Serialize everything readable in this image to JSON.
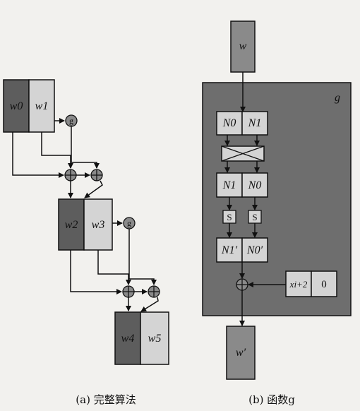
{
  "left": {
    "w0": "w0",
    "w1": "w1",
    "w2": "w2",
    "w3": "w3",
    "w4": "w4",
    "w5": "w5",
    "g": "g",
    "caption": "(a) 完整算法"
  },
  "right": {
    "w_in": "w",
    "w_out": "w′",
    "g_label": "g",
    "n0": "N0",
    "n1": "N1",
    "n1b": "N1",
    "n0b": "N0",
    "s": "S",
    "n1p": "N1′",
    "n0p": "N0′",
    "xi": "xi+2",
    "zero": "0",
    "caption": "(b) 函数g"
  },
  "colors": {
    "dark": "#5d5d5d",
    "light": "#d4d4d4",
    "medium": "#8a8a8a",
    "bg": "#f2f1ee"
  }
}
